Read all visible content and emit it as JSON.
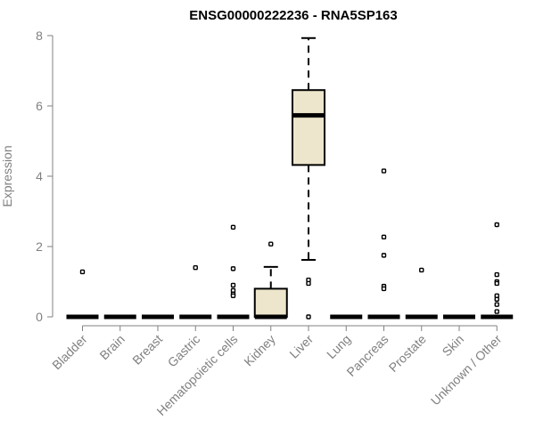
{
  "chart_data": {
    "type": "box",
    "title": "ENSG00000222236 - RNA5SP163",
    "xlabel": "",
    "ylabel": "Expression",
    "ylim": [
      0,
      8
    ],
    "yticks": [
      0,
      2,
      4,
      6,
      8
    ],
    "grid": false,
    "box_color": "#ede6cc",
    "categories": [
      "Bladder",
      "Brain",
      "Breast",
      "Gastric",
      "Hematopoietic cells",
      "Kidney",
      "Liver",
      "Lung",
      "Pancreas",
      "Prostate",
      "Skin",
      "Unknown / Other"
    ],
    "boxes": [
      {
        "category": "Bladder",
        "q1": 0,
        "median": 0,
        "q3": 0,
        "whisker_low": 0,
        "whisker_high": 0,
        "outliers": [
          1.28
        ]
      },
      {
        "category": "Brain",
        "q1": 0,
        "median": 0,
        "q3": 0,
        "whisker_low": 0,
        "whisker_high": 0,
        "outliers": []
      },
      {
        "category": "Breast",
        "q1": 0,
        "median": 0,
        "q3": 0,
        "whisker_low": 0,
        "whisker_high": 0,
        "outliers": []
      },
      {
        "category": "Gastric",
        "q1": 0,
        "median": 0,
        "q3": 0,
        "whisker_low": 0,
        "whisker_high": 0,
        "outliers": [
          1.4
        ]
      },
      {
        "category": "Hematopoietic cells",
        "q1": 0,
        "median": 0,
        "q3": 0,
        "whisker_low": 0,
        "whisker_high": 0,
        "outliers": [
          2.55,
          1.37,
          0.9,
          0.75,
          0.65,
          0.6
        ]
      },
      {
        "category": "Kidney",
        "q1": 0,
        "median": 0,
        "q3": 0.8,
        "whisker_low": 0,
        "whisker_high": 1.42,
        "outliers": [
          2.07
        ]
      },
      {
        "category": "Liver",
        "q1": 4.32,
        "median": 5.73,
        "q3": 6.45,
        "whisker_low": 1.62,
        "whisker_high": 7.93,
        "outliers": [
          1.05,
          0.95,
          0
        ]
      },
      {
        "category": "Lung",
        "q1": 0,
        "median": 0,
        "q3": 0,
        "whisker_low": 0,
        "whisker_high": 0,
        "outliers": []
      },
      {
        "category": "Pancreas",
        "q1": 0,
        "median": 0,
        "q3": 0,
        "whisker_low": 0,
        "whisker_high": 0,
        "outliers": [
          4.15,
          2.27,
          1.75,
          0.87,
          0.8
        ]
      },
      {
        "category": "Prostate",
        "q1": 0,
        "median": 0,
        "q3": 0,
        "whisker_low": 0,
        "whisker_high": 0,
        "outliers": [
          1.33
        ]
      },
      {
        "category": "Skin",
        "q1": 0,
        "median": 0,
        "q3": 0,
        "whisker_low": 0,
        "whisker_high": 0,
        "outliers": []
      },
      {
        "category": "Unknown / Other",
        "q1": 0,
        "median": 0,
        "q3": 0,
        "whisker_low": 0,
        "whisker_high": 0,
        "outliers": [
          2.62,
          1.2,
          1.0,
          0.95,
          0.6,
          0.5,
          0.35,
          0.15
        ]
      }
    ]
  }
}
